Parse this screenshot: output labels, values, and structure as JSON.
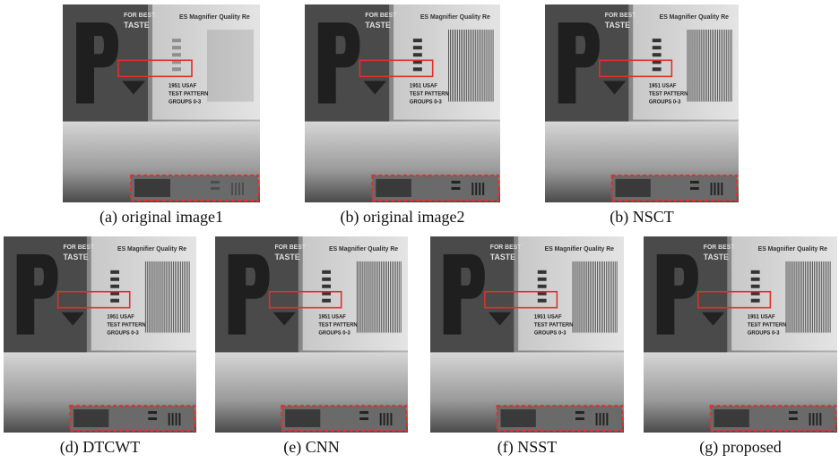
{
  "panels": [
    {
      "caption": "(a) original image1"
    },
    {
      "caption": "(b) original image2"
    },
    {
      "caption": "(b) NSCT"
    },
    {
      "caption": "(d) DTCWT"
    },
    {
      "caption": "(e) CNN"
    },
    {
      "caption": "(f) NSST"
    },
    {
      "caption": "(g) proposed"
    }
  ],
  "scene_text": {
    "brand_line1": "FOR BEST",
    "brand_line2": "TASTE",
    "card_title": "ES Magnifier Quality Re",
    "pattern_line1": "1951 USAF",
    "pattern_line2": "TEST PATTERN",
    "pattern_line3": "GROUPS 0-3"
  }
}
